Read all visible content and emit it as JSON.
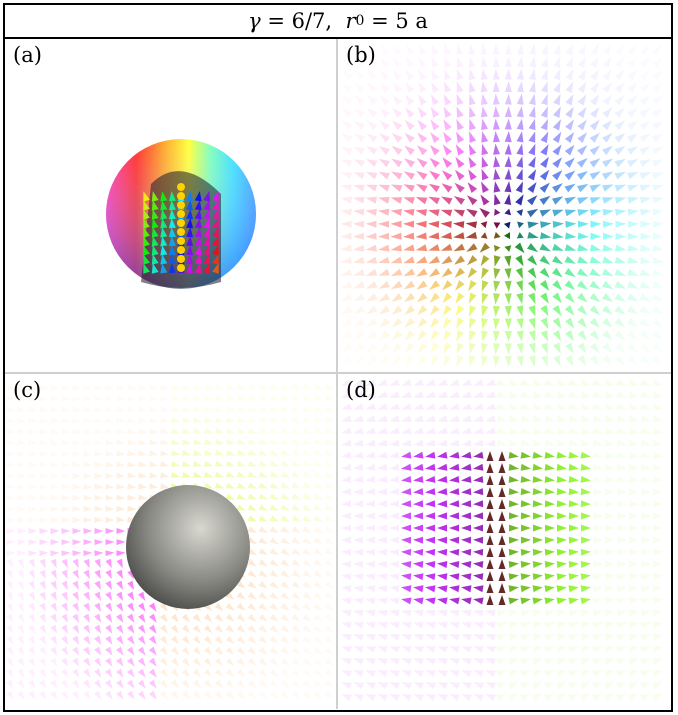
{
  "header": {
    "gamma_symbol": "γ",
    "gamma_value": "= 6/7,",
    "r_symbol": "r",
    "r_subscript": "0",
    "r_value": "= 5 a"
  },
  "panels": [
    {
      "label": "(a)"
    },
    {
      "label": "(b)"
    },
    {
      "label": "(c)"
    },
    {
      "label": "(d)"
    }
  ]
}
